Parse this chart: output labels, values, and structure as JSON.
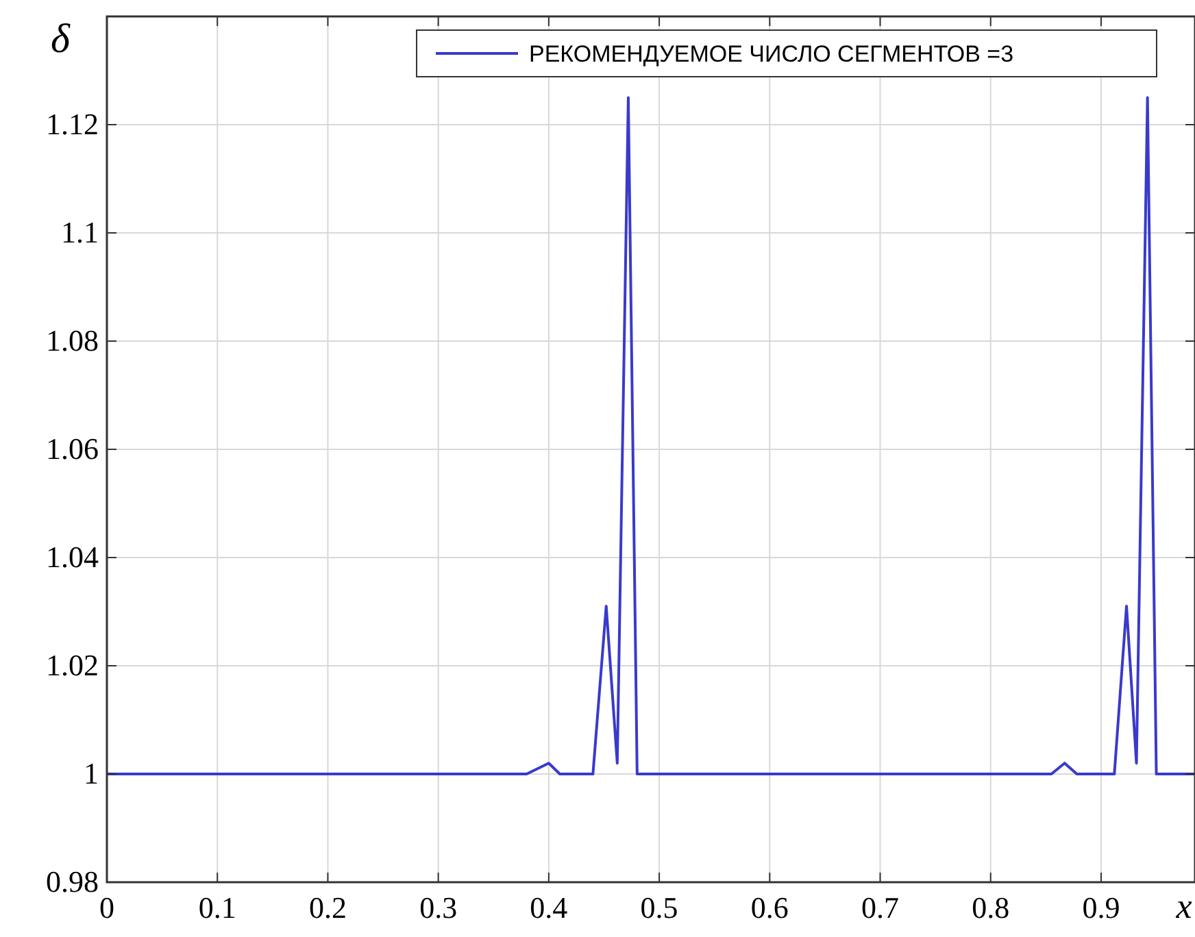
{
  "chart_data": {
    "type": "line",
    "xlabel": "x",
    "ylabel": "δ",
    "xlim": [
      0,
      0.985
    ],
    "ylim": [
      0.98,
      1.14
    ],
    "xticks": [
      0,
      0.1,
      0.2,
      0.3,
      0.4,
      0.5,
      0.6,
      0.7,
      0.8,
      0.9
    ],
    "yticks": [
      0.98,
      1,
      1.02,
      1.04,
      1.06,
      1.08,
      1.1,
      1.12
    ],
    "grid": true,
    "legend": "top right",
    "line_style": "solid",
    "marker": "none",
    "series": [
      {
        "name": "РЕКОМЕНДУЕМОЕ ЧИСЛО СЕГМЕНТОВ =3",
        "color": "#3a3acc",
        "x": [
          0,
          0.38,
          0.4,
          0.41,
          0.44,
          0.452,
          0.462,
          0.472,
          0.48,
          0.855,
          0.867,
          0.878,
          0.912,
          0.923,
          0.932,
          0.942,
          0.95,
          0.985
        ],
        "values": [
          1,
          1,
          1.002,
          1,
          1,
          1.031,
          1.002,
          1.125,
          1,
          1,
          1.002,
          1,
          1,
          1.031,
          1.002,
          1.125,
          1,
          1
        ]
      }
    ]
  }
}
